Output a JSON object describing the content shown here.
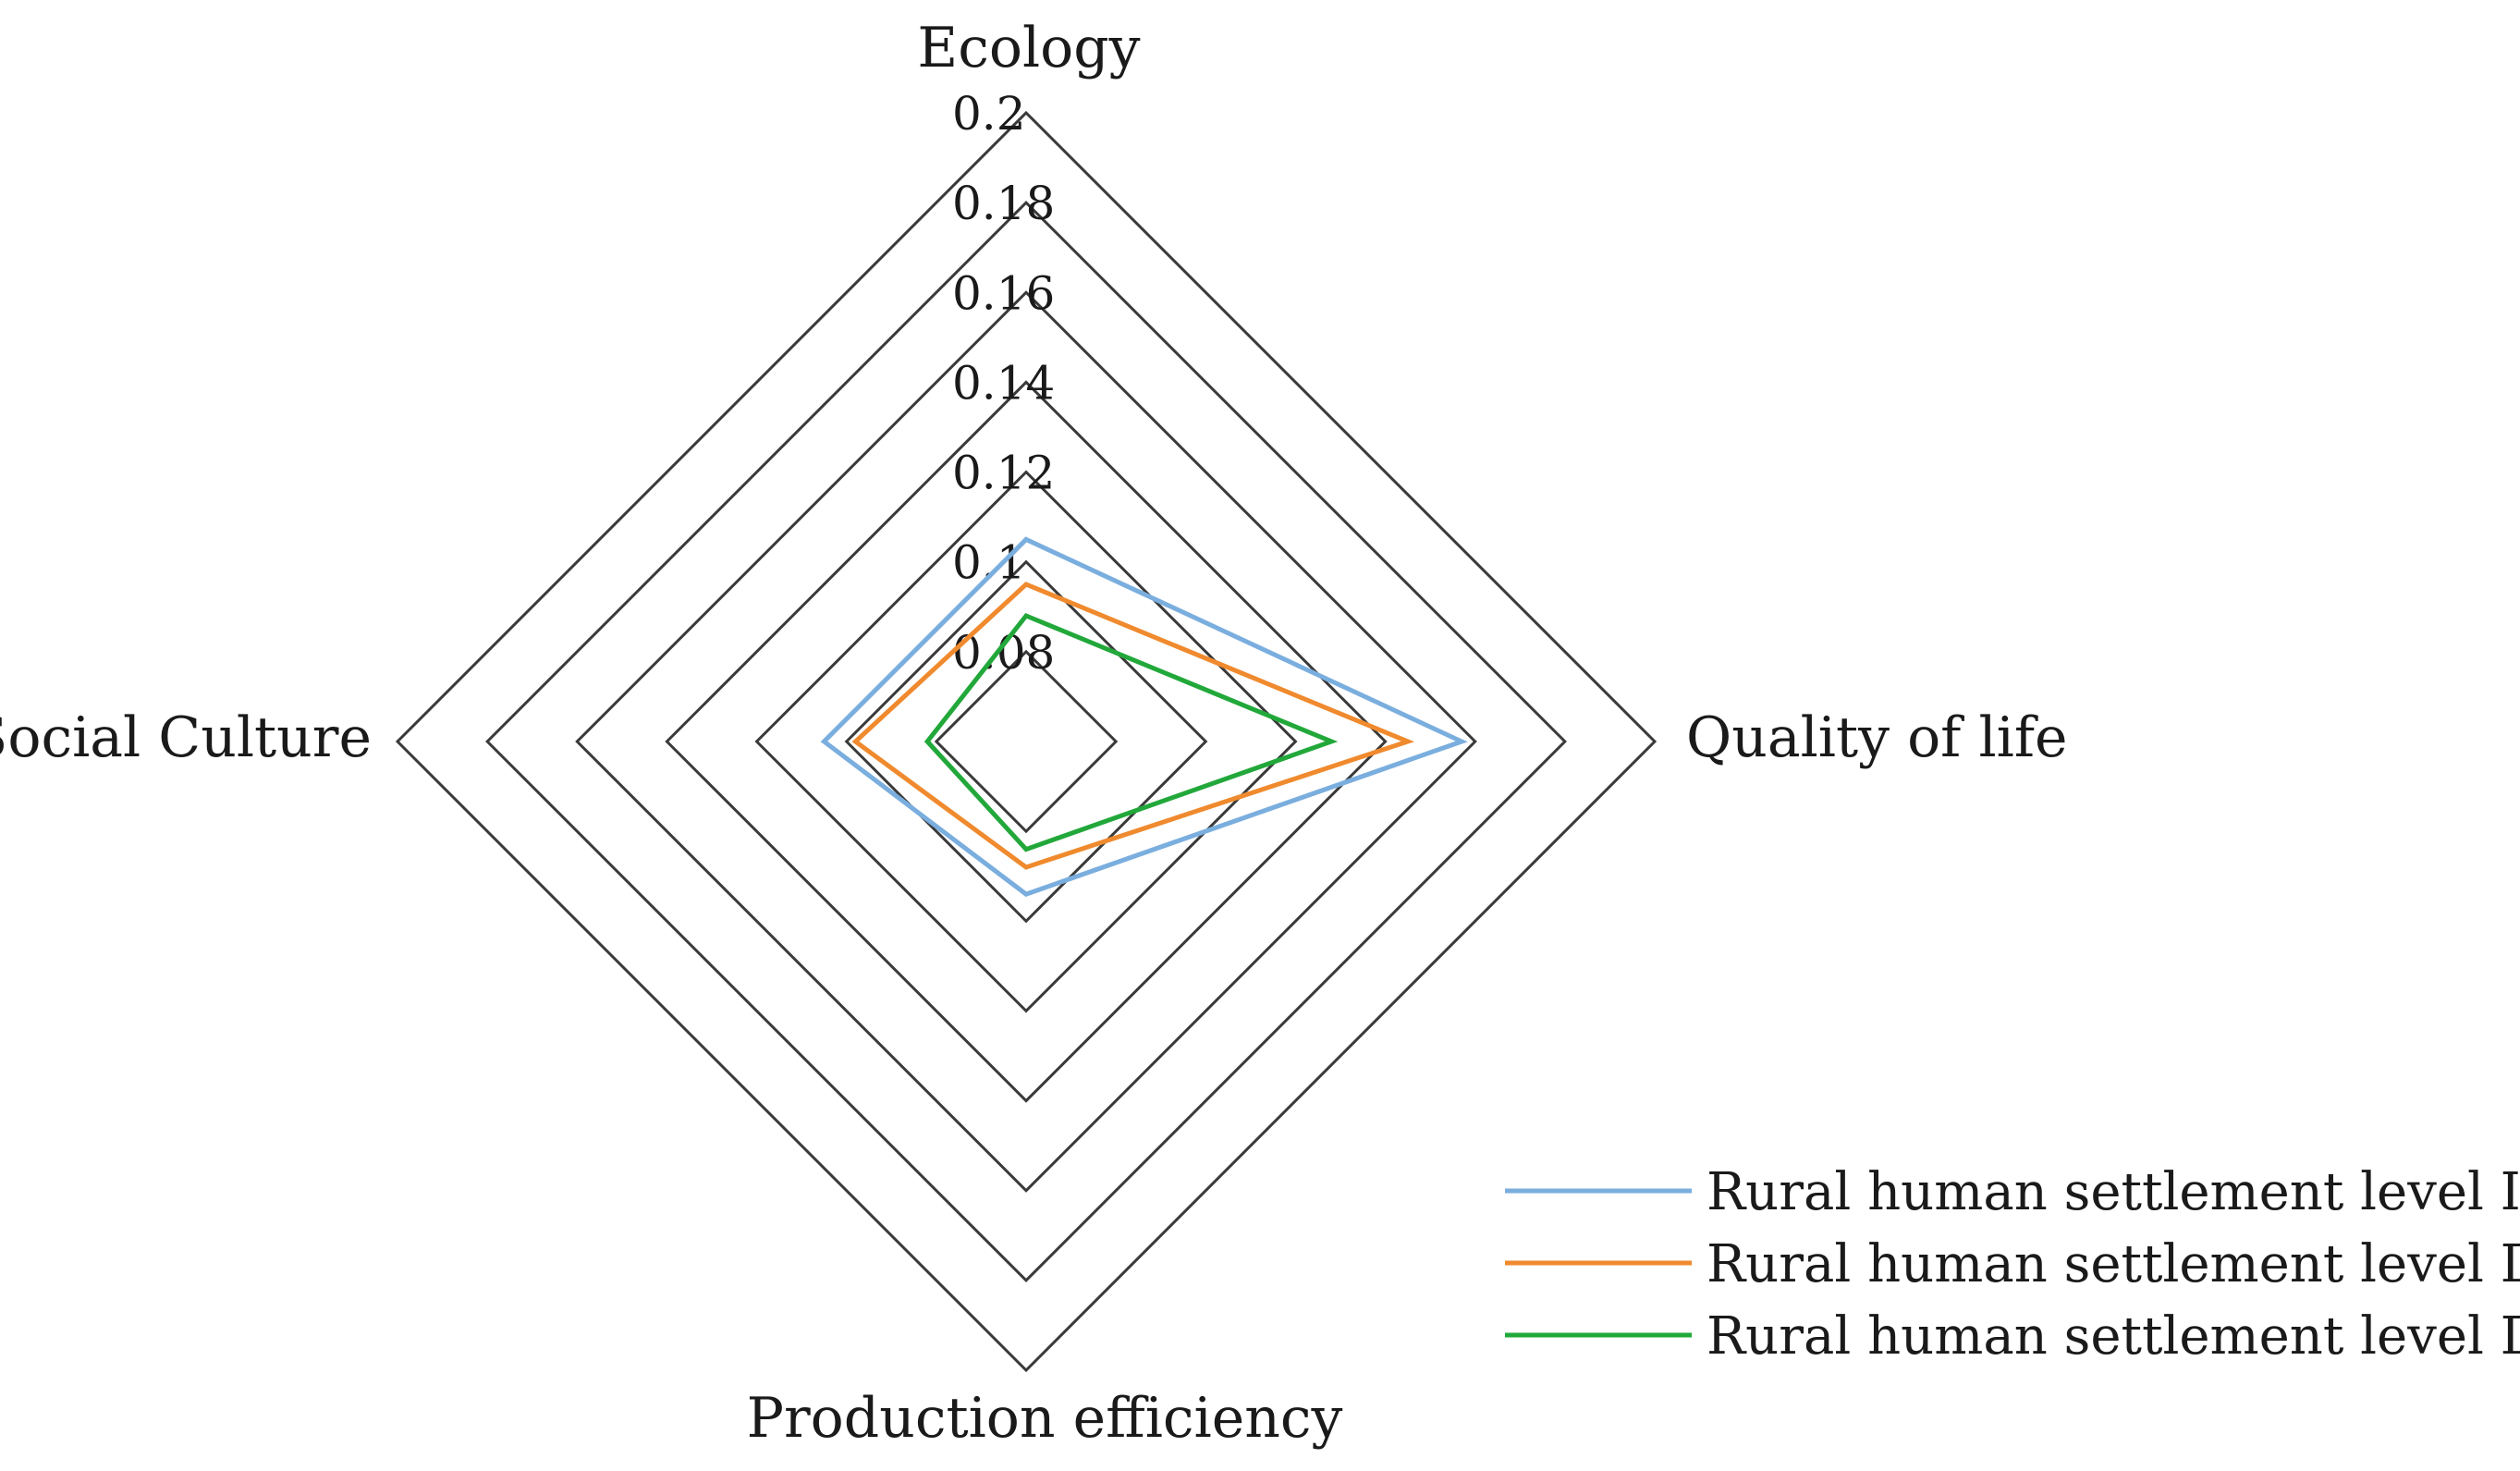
{
  "chart_data": {
    "type": "radar",
    "axes": [
      "Ecology",
      "Quality of  life",
      "Production efficiency",
      "Social Culture"
    ],
    "ticks": [
      "0.08",
      "0.1",
      "0.12",
      "0.14",
      "0.16",
      "0.18",
      "0.2"
    ],
    "tick_values": [
      0.08,
      0.1,
      0.12,
      0.14,
      0.16,
      0.18,
      0.2
    ],
    "range": [
      0.06,
      0.2
    ],
    "legend_position": "bottom-right",
    "series": [
      {
        "name": "Rural human settlement level Ⅰ",
        "color": "#7aaede",
        "values": [
          0.105,
          0.157,
          0.094,
          0.105
        ]
      },
      {
        "name": "Rural human settlement level Ⅱ",
        "color": "#f08a2e",
        "values": [
          0.095,
          0.145,
          0.088,
          0.098
        ]
      },
      {
        "name": "Rural human settlement level Ⅲ",
        "color": "#22a83a",
        "values": [
          0.088,
          0.128,
          0.084,
          0.082
        ]
      }
    ]
  }
}
